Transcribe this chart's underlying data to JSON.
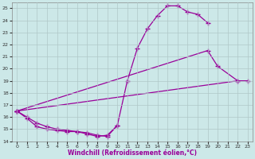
{
  "background_color": "#cce8e8",
  "line_color": "#990099",
  "marker": "+",
  "marker_size": 4,
  "xlabel": "Windchill (Refroidissement éolien,°C)",
  "xlim": [
    -0.5,
    23.5
  ],
  "ylim": [
    14,
    25.5
  ],
  "yticks": [
    14,
    15,
    16,
    17,
    18,
    19,
    20,
    21,
    22,
    23,
    24,
    25
  ],
  "xticks": [
    0,
    1,
    2,
    3,
    4,
    5,
    6,
    7,
    8,
    9,
    10,
    11,
    12,
    13,
    14,
    15,
    16,
    17,
    18,
    19,
    20,
    21,
    22,
    23
  ],
  "series": [
    {
      "x": [
        0,
        1,
        2,
        3,
        4,
        5,
        6,
        7,
        8,
        9,
        10,
        11,
        12,
        13,
        14,
        15,
        16,
        17,
        18,
        19
      ],
      "y": [
        16.5,
        16.0,
        15.5,
        15.2,
        15.0,
        14.9,
        14.8,
        14.6,
        14.4,
        14.5,
        15.3,
        19.0,
        21.7,
        23.3,
        24.4,
        25.2,
        25.2,
        24.7,
        24.5,
        23.8
      ]
    },
    {
      "x": [
        0,
        22,
        23
      ],
      "y": [
        16.5,
        19.0,
        19.0
      ]
    },
    {
      "x": [
        0,
        19,
        20,
        22
      ],
      "y": [
        16.5,
        21.5,
        20.2,
        19.0
      ]
    },
    {
      "x": [
        0,
        1,
        2,
        3,
        4,
        5,
        6,
        7,
        8,
        9,
        10
      ],
      "y": [
        16.5,
        15.9,
        15.2,
        15.0,
        14.9,
        14.8,
        14.8,
        14.7,
        14.5,
        14.4,
        15.3
      ]
    }
  ]
}
